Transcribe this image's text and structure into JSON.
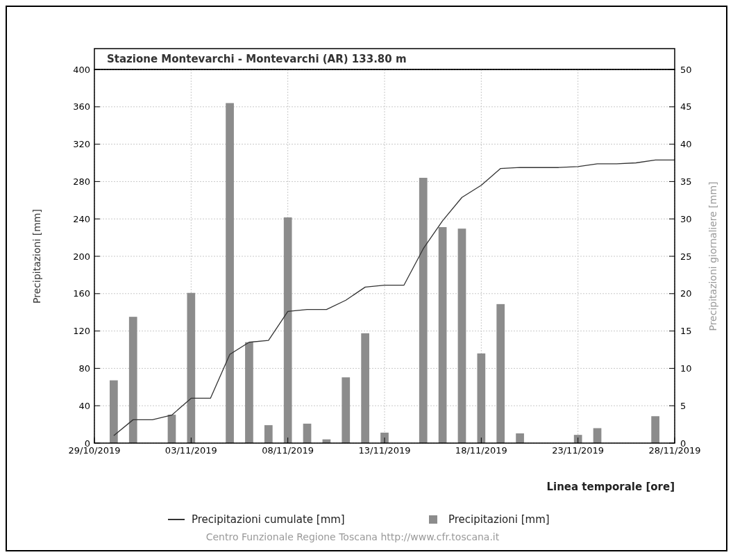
{
  "chart_data": {
    "type": "bar",
    "title": "Stazione Montevarchi - Montevarchi (AR) 133.80 m",
    "xlabel": "Linea temporale [ore]",
    "ylabel": "Precipitazioni [mm]",
    "y2label": "Precipitazioni giornaliere [mm]",
    "annotations": [
      "Centro Funzionale Regione Toscana http://www.cfr.toscana.it"
    ],
    "xlim": [
      "2019-10-29",
      "2019-11-28"
    ],
    "xticks": [
      {
        "value": "2019-10-29",
        "label": "29/10/2019"
      },
      {
        "value": "2019-11-03",
        "label": "03/11/2019"
      },
      {
        "value": "2019-11-08",
        "label": "08/11/2019"
      },
      {
        "value": "2019-11-13",
        "label": "13/11/2019"
      },
      {
        "value": "2019-11-18",
        "label": "18/11/2019"
      },
      {
        "value": "2019-11-23",
        "label": "23/11/2019"
      },
      {
        "value": "2019-11-28",
        "label": "28/11/2019"
      }
    ],
    "ylim": [
      0,
      400
    ],
    "yticks": [
      0,
      40,
      80,
      120,
      160,
      200,
      240,
      280,
      320,
      360,
      400
    ],
    "y2lim": [
      0,
      50
    ],
    "y2ticks": [
      0,
      5,
      10,
      15,
      20,
      25,
      30,
      35,
      40,
      45,
      50
    ],
    "grid": true,
    "legend": "bottom",
    "series": [
      {
        "name": "Precipitazioni cumulate [mm]",
        "type": "line",
        "color": "#333333",
        "x": [
          "2019-10-30",
          "2019-10-31",
          "2019-11-01",
          "2019-11-02",
          "2019-11-03",
          "2019-11-04",
          "2019-11-05",
          "2019-11-06",
          "2019-11-07",
          "2019-11-08",
          "2019-11-09",
          "2019-11-10",
          "2019-11-11",
          "2019-11-12",
          "2019-11-13",
          "2019-11-14",
          "2019-11-15",
          "2019-11-16",
          "2019-11-17",
          "2019-11-18",
          "2019-11-19",
          "2019-11-20",
          "2019-11-21",
          "2019-11-22",
          "2019-11-23",
          "2019-11-24",
          "2019-11-25",
          "2019-11-26",
          "2019-11-27",
          "2019-11-28"
        ],
        "values": [
          8,
          25,
          25,
          30,
          48,
          48,
          95,
          108,
          110,
          141,
          143,
          143,
          153,
          167,
          169,
          169,
          208,
          238,
          263,
          276,
          294,
          295,
          295,
          295,
          296,
          299,
          299,
          300,
          303,
          303
        ]
      },
      {
        "name": "Precipitazioni [mm]",
        "axis": "y2",
        "color": "#8c8c8c",
        "x": [
          "2019-10-30",
          "2019-10-31",
          "2019-11-02",
          "2019-11-03",
          "2019-11-05",
          "2019-11-06",
          "2019-11-07",
          "2019-11-08",
          "2019-11-09",
          "2019-11-10",
          "2019-11-11",
          "2019-11-12",
          "2019-11-13",
          "2019-11-15",
          "2019-11-16",
          "2019-11-17",
          "2019-11-18",
          "2019-11-19",
          "2019-11-20",
          "2019-11-23",
          "2019-11-24",
          "2019-11-27"
        ],
        "values": [
          8.4,
          16.9,
          3.8,
          20.1,
          45.5,
          13.5,
          2.4,
          30.2,
          2.6,
          0.5,
          8.8,
          14.7,
          1.4,
          35.5,
          28.9,
          28.7,
          12.0,
          18.6,
          1.3,
          1.1,
          2.0,
          3.6
        ]
      }
    ]
  }
}
